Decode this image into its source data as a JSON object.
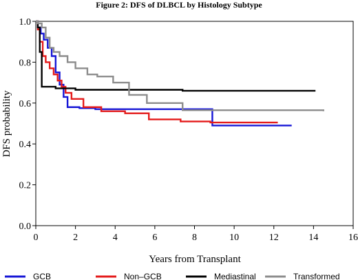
{
  "chart_data": {
    "type": "line",
    "title": "Figure 2: DFS of DLBCL by Histology Subtype",
    "xlabel": "Years from Transplant",
    "ylabel": "DFS probability",
    "xlim": [
      0,
      16
    ],
    "ylim": [
      0,
      1.0
    ],
    "x_ticks": [
      0,
      2,
      4,
      6,
      8,
      10,
      12,
      14,
      16
    ],
    "y_ticks": [
      0.0,
      0.2,
      0.4,
      0.6,
      0.8,
      1.0
    ],
    "x_tick_labels": [
      "0",
      "2",
      "4",
      "6",
      "8",
      "10",
      "12",
      "14",
      "16"
    ],
    "y_tick_labels": [
      "0.0",
      "0.2",
      "0.4",
      "0.6",
      "0.8",
      "1.0"
    ],
    "grid": false,
    "legend_position": "bottom",
    "series": [
      {
        "name": "GCB",
        "color": "#1515d6",
        "x": [
          0,
          0.1,
          0.25,
          0.4,
          0.6,
          0.8,
          1.0,
          1.2,
          1.4,
          1.6,
          2.2,
          3.0,
          7.4,
          8.9,
          12.9
        ],
        "y": [
          1.0,
          0.97,
          0.94,
          0.91,
          0.87,
          0.83,
          0.75,
          0.69,
          0.63,
          0.58,
          0.575,
          0.57,
          0.57,
          0.49,
          0.49
        ]
      },
      {
        "name": "Non–GCB",
        "color": "#e41a1a",
        "x": [
          0,
          0.1,
          0.2,
          0.35,
          0.5,
          0.7,
          0.9,
          1.1,
          1.3,
          1.5,
          1.8,
          2.4,
          3.3,
          4.5,
          5.7,
          7.3,
          8.8,
          12.2
        ],
        "y": [
          1.0,
          0.96,
          0.9,
          0.83,
          0.8,
          0.77,
          0.74,
          0.71,
          0.68,
          0.65,
          0.62,
          0.58,
          0.56,
          0.55,
          0.52,
          0.51,
          0.505,
          0.505
        ]
      },
      {
        "name": "Mediastinal",
        "color": "#000000",
        "x": [
          0,
          0.1,
          0.2,
          0.3,
          1.0,
          2.0,
          7.4,
          14.1
        ],
        "y": [
          1.0,
          0.97,
          0.85,
          0.68,
          0.672,
          0.665,
          0.66,
          0.66
        ]
      },
      {
        "name": "Transformed",
        "color": "#8c8c8c",
        "x": [
          0,
          0.1,
          0.3,
          0.5,
          0.7,
          0.9,
          1.2,
          1.6,
          2.0,
          2.6,
          3.1,
          3.9,
          4.7,
          5.6,
          7.4,
          14.5
        ],
        "y": [
          1.0,
          0.99,
          0.97,
          0.92,
          0.87,
          0.85,
          0.83,
          0.8,
          0.77,
          0.74,
          0.73,
          0.7,
          0.64,
          0.6,
          0.565,
          0.56
        ]
      }
    ]
  }
}
